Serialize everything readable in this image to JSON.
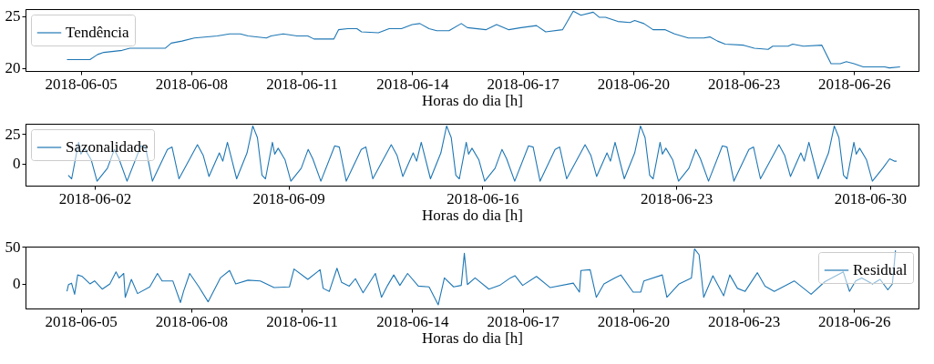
{
  "chart_data": [
    {
      "type": "line",
      "xlabel": "Horas do dia [h]",
      "xlim": [
        "2018-06-03T12:00",
        "2018-06-27T18:00"
      ],
      "xticks": [
        "2018-06-05",
        "2018-06-08",
        "2018-06-11",
        "2018-06-14",
        "2018-06-17",
        "2018-06-20",
        "2018-06-23",
        "2018-06-26"
      ],
      "ylim": [
        19.7,
        25.7
      ],
      "yticks": [
        20,
        25
      ],
      "grid": false,
      "legend": "top left",
      "marker": "none",
      "line_style": "solid",
      "series": [
        {
          "name": "Tendência",
          "color": "#1f77b4",
          "x": [
            "2018-06-04T15:00",
            "2018-06-05T06:00",
            "2018-06-05T11:00",
            "2018-06-05T15:00",
            "2018-06-06T03:00",
            "2018-06-06T08:00",
            "2018-06-06T19:00",
            "2018-06-07T07:00",
            "2018-06-07T11:00",
            "2018-06-07T18:00",
            "2018-06-08T02:00",
            "2018-06-08T17:00",
            "2018-06-09T01:00",
            "2018-06-09T08:00",
            "2018-06-09T13:00",
            "2018-06-10T01:00",
            "2018-06-10T04:00",
            "2018-06-10T12:00",
            "2018-06-10T21:00",
            "2018-06-11T04:00",
            "2018-06-11T08:00",
            "2018-06-11T21:00",
            "2018-06-12T00:00",
            "2018-06-12T06:00",
            "2018-06-12T12:00",
            "2018-06-12T15:00",
            "2018-06-13T02:00",
            "2018-06-13T09:00",
            "2018-06-13T17:00",
            "2018-06-14T00:00",
            "2018-06-14T05:00",
            "2018-06-14T11:00",
            "2018-06-14T16:00",
            "2018-06-15T00:00",
            "2018-06-15T08:00",
            "2018-06-15T12:00",
            "2018-06-16T00:00",
            "2018-06-16T07:00",
            "2018-06-16T15:00",
            "2018-06-16T23:00",
            "2018-06-17T09:00",
            "2018-06-17T15:00",
            "2018-06-18T02:00",
            "2018-06-18T09:00",
            "2018-06-18T14:00",
            "2018-06-18T22:00",
            "2018-06-19T02:00",
            "2018-06-19T06:00",
            "2018-06-19T14:00",
            "2018-06-19T22:00",
            "2018-06-20T01:00",
            "2018-06-20T07:00",
            "2018-06-20T13:00",
            "2018-06-20T21:00",
            "2018-06-21T03:00",
            "2018-06-21T12:00",
            "2018-06-21T22:00",
            "2018-06-22T02:00",
            "2018-06-22T07:00",
            "2018-06-22T12:00",
            "2018-06-23T00:00",
            "2018-06-23T07:00",
            "2018-06-23T16:00",
            "2018-06-23T19:00",
            "2018-06-24T05:00",
            "2018-06-24T08:00",
            "2018-06-24T15:00",
            "2018-06-25T03:00",
            "2018-06-25T09:00",
            "2018-06-25T15:00",
            "2018-06-25T19:00",
            "2018-06-26T00:00",
            "2018-06-26T06:00",
            "2018-06-26T20:00",
            "2018-06-26T23:00",
            "2018-06-27T06:00"
          ],
          "values": [
            20.8,
            20.8,
            21.3,
            21.5,
            21.7,
            21.9,
            21.9,
            21.9,
            22.4,
            22.6,
            22.9,
            23.1,
            23.3,
            23.3,
            23.1,
            22.9,
            23.1,
            23.3,
            23.1,
            23.1,
            22.8,
            22.8,
            23.7,
            23.8,
            23.8,
            23.5,
            23.4,
            23.8,
            23.8,
            24.2,
            24.3,
            23.8,
            23.6,
            23.6,
            24.3,
            23.9,
            23.7,
            24.2,
            23.7,
            23.9,
            24.1,
            23.5,
            23.7,
            25.5,
            25.1,
            25.4,
            24.9,
            24.9,
            24.5,
            24.4,
            24.6,
            24.3,
            23.7,
            23.7,
            23.3,
            22.9,
            22.9,
            23.0,
            22.6,
            22.3,
            22.2,
            21.9,
            21.8,
            22.1,
            22.1,
            22.3,
            22.1,
            22.2,
            20.4,
            20.4,
            20.6,
            20.4,
            20.1,
            20.1,
            20.0,
            20.1
          ]
        }
      ]
    },
    {
      "type": "line",
      "xlabel": "Horas do dia [h]",
      "xlim": [
        "2018-05-30T12:00",
        "2018-07-01T18:00"
      ],
      "xticks": [
        "2018-06-02",
        "2018-06-09",
        "2018-06-16",
        "2018-06-23",
        "2018-06-30"
      ],
      "ylim": [
        -18.8,
        33.8
      ],
      "yticks": [
        0,
        25
      ],
      "grid": false,
      "legend": "top left",
      "marker": "none",
      "line_style": "solid",
      "series": [
        {
          "name": "Sazonalidade",
          "color": "#1f77b4",
          "x": [
            "2018-06-01T01:00",
            "2018-06-01T04:00",
            "2018-06-01T10:00",
            "2018-06-01T12:00",
            "2018-06-01T15:00",
            "2018-06-01T21:00",
            "2018-06-02T02:00",
            "2018-06-02T11:00",
            "2018-06-02T17:00",
            "2018-06-02T21:00",
            "2018-06-03T04:00",
            "2018-06-03T16:00",
            "2018-06-03T20:00",
            "2018-06-04T02:00",
            "2018-06-04T15:00",
            "2018-06-04T19:00",
            "2018-06-05T01:00",
            "2018-06-05T17:00",
            "2018-06-05T22:00",
            "2018-06-06T03:00",
            "2018-06-06T12:00",
            "2018-06-06T15:00",
            "2018-06-06T19:00",
            "2018-06-07T03:00",
            "2018-06-07T12:00",
            "2018-06-07T17:00",
            "2018-06-07T21:00",
            "2018-06-08T01:00",
            "2018-06-08T04:00",
            "2018-06-08T10:00",
            "2018-06-08T12:00",
            "2018-06-08T15:00",
            "2018-06-08T21:00",
            "2018-06-09T02:00",
            "2018-06-09T11:00",
            "2018-06-09T17:00",
            "2018-06-09T21:00",
            "2018-06-10T04:00",
            "2018-06-10T16:00",
            "2018-06-10T20:00",
            "2018-06-11T02:00",
            "2018-06-11T15:00",
            "2018-06-11T19:00",
            "2018-06-12T01:00",
            "2018-06-12T17:00",
            "2018-06-12T22:00",
            "2018-06-13T03:00",
            "2018-06-13T12:00",
            "2018-06-13T15:00",
            "2018-06-13T19:00",
            "2018-06-14T03:00",
            "2018-06-14T12:00",
            "2018-06-14T17:00",
            "2018-06-14T21:00",
            "2018-06-15T01:00",
            "2018-06-15T04:00",
            "2018-06-15T10:00",
            "2018-06-15T12:00",
            "2018-06-15T15:00",
            "2018-06-15T21:00",
            "2018-06-16T02:00",
            "2018-06-16T11:00",
            "2018-06-16T17:00",
            "2018-06-16T21:00",
            "2018-06-17T04:00",
            "2018-06-17T16:00",
            "2018-06-17T20:00",
            "2018-06-18T02:00",
            "2018-06-18T15:00",
            "2018-06-18T19:00",
            "2018-06-19T01:00",
            "2018-06-19T17:00",
            "2018-06-19T22:00",
            "2018-06-20T03:00",
            "2018-06-20T12:00",
            "2018-06-20T15:00",
            "2018-06-20T19:00",
            "2018-06-21T03:00",
            "2018-06-21T12:00",
            "2018-06-21T17:00",
            "2018-06-21T21:00",
            "2018-06-22T01:00",
            "2018-06-22T04:00",
            "2018-06-22T10:00",
            "2018-06-22T12:00",
            "2018-06-22T15:00",
            "2018-06-22T21:00",
            "2018-06-23T02:00",
            "2018-06-23T11:00",
            "2018-06-23T17:00",
            "2018-06-23T21:00",
            "2018-06-24T04:00",
            "2018-06-24T16:00",
            "2018-06-24T20:00",
            "2018-06-25T02:00",
            "2018-06-25T15:00",
            "2018-06-25T19:00",
            "2018-06-26T01:00",
            "2018-06-26T17:00",
            "2018-06-26T22:00",
            "2018-06-27T03:00",
            "2018-06-27T12:00",
            "2018-06-27T15:00",
            "2018-06-27T19:00",
            "2018-06-28T03:00",
            "2018-06-28T12:00",
            "2018-06-28T17:00",
            "2018-06-28T21:00",
            "2018-06-29T01:00",
            "2018-06-29T04:00",
            "2018-06-29T10:00",
            "2018-06-29T12:00",
            "2018-06-29T15:00",
            "2018-06-29T21:00",
            "2018-06-30T02:00",
            "2018-06-30T11:00",
            "2018-06-30T17:00",
            "2018-06-30T21:00",
            "2018-06-30T23:00"
          ],
          "values": [
            -10,
            -13,
            18,
            8,
            13,
            3,
            -15,
            -4,
            12,
            4,
            -15,
            15,
            14,
            -15,
            12,
            14,
            -13,
            16,
            7,
            -11,
            9,
            2,
            18,
            -13,
            9,
            32,
            22,
            -10,
            -13,
            18,
            8,
            13,
            3,
            -15,
            -4,
            12,
            4,
            -15,
            15,
            14,
            -15,
            12,
            14,
            -13,
            16,
            7,
            -11,
            9,
            2,
            18,
            -13,
            9,
            32,
            22,
            -10,
            -13,
            18,
            8,
            13,
            3,
            -15,
            -4,
            12,
            4,
            -15,
            15,
            14,
            -15,
            12,
            14,
            -13,
            16,
            7,
            -11,
            9,
            2,
            18,
            -13,
            9,
            32,
            22,
            -10,
            -13,
            18,
            8,
            13,
            3,
            -15,
            -4,
            12,
            4,
            -15,
            15,
            14,
            -15,
            12,
            14,
            -13,
            16,
            7,
            -11,
            9,
            2,
            18,
            -13,
            9,
            32,
            22,
            -10,
            -13,
            18,
            8,
            13,
            3,
            -15,
            -4,
            4,
            2,
            2
          ]
        }
      ]
    },
    {
      "type": "line",
      "xlabel": "Horas do dia [h]",
      "xlim": [
        "2018-06-03T12:00",
        "2018-06-27T18:00"
      ],
      "xticks": [
        "2018-06-05",
        "2018-06-08",
        "2018-06-11",
        "2018-06-14",
        "2018-06-17",
        "2018-06-20",
        "2018-06-23",
        "2018-06-26"
      ],
      "ylim": [
        -33,
        50
      ],
      "yticks": [
        0,
        50
      ],
      "grid": false,
      "legend": "top right",
      "marker": "none",
      "line_style": "solid",
      "series": [
        {
          "name": "Residual",
          "color": "#1f77b4",
          "x": [
            "2018-06-04T15:00",
            "2018-06-04T16:00",
            "2018-06-04T18:00",
            "2018-06-04T20:00",
            "2018-06-04T22:00",
            "2018-06-05T01:00",
            "2018-06-05T06:00",
            "2018-06-05T09:00",
            "2018-06-05T14:00",
            "2018-06-05T19:00",
            "2018-06-05T23:00",
            "2018-06-06T01:00",
            "2018-06-06T04:00",
            "2018-06-06T05:00",
            "2018-06-06T09:00",
            "2018-06-06T13:00",
            "2018-06-06T21:00",
            "2018-06-07T02:00",
            "2018-06-07T05:00",
            "2018-06-07T12:00",
            "2018-06-07T17:00",
            "2018-06-07T19:00",
            "2018-06-07T23:00",
            "2018-06-08T05:00",
            "2018-06-08T11:00",
            "2018-06-08T19:00",
            "2018-06-09T01:00",
            "2018-06-09T05:00",
            "2018-06-09T13:00",
            "2018-06-09T21:00",
            "2018-06-10T06:00",
            "2018-06-10T16:00",
            "2018-06-10T19:00",
            "2018-06-11T04:00",
            "2018-06-11T12:00",
            "2018-06-11T14:00",
            "2018-06-11T18:00",
            "2018-06-11T23:00",
            "2018-06-12T02:00",
            "2018-06-12T07:00",
            "2018-06-12T11:00",
            "2018-06-12T16:00",
            "2018-06-13T00:00",
            "2018-06-13T04:00",
            "2018-06-13T08:00",
            "2018-06-13T12:00",
            "2018-06-13T16:00",
            "2018-06-13T21:00",
            "2018-06-14T04:00",
            "2018-06-14T11:00",
            "2018-06-14T17:00",
            "2018-06-14T21:00",
            "2018-06-15T03:00",
            "2018-06-15T08:00",
            "2018-06-15T10:00",
            "2018-06-15T12:00",
            "2018-06-15T17:00",
            "2018-06-16T02:00",
            "2018-06-16T09:00",
            "2018-06-16T16:00",
            "2018-06-16T19:00",
            "2018-06-17T00:00",
            "2018-06-17T09:00",
            "2018-06-17T18:00",
            "2018-06-18T09:00",
            "2018-06-18T13:00",
            "2018-06-18T14:00",
            "2018-06-18T20:00",
            "2018-06-19T00:00",
            "2018-06-19T05:00",
            "2018-06-19T12:00",
            "2018-06-19T16:00",
            "2018-06-20T00:00",
            "2018-06-20T05:00",
            "2018-06-20T07:00",
            "2018-06-20T19:00",
            "2018-06-20T22:00",
            "2018-06-21T06:00",
            "2018-06-21T14:00",
            "2018-06-21T16:00",
            "2018-06-21T19:00",
            "2018-06-21T22:00",
            "2018-06-22T04:00",
            "2018-06-22T11:00",
            "2018-06-22T15:00",
            "2018-06-22T20:00",
            "2018-06-23T01:00",
            "2018-06-23T09:00",
            "2018-06-23T14:00",
            "2018-06-23T20:00",
            "2018-06-24T09:00",
            "2018-06-24T20:00",
            "2018-06-25T05:00",
            "2018-06-25T17:00",
            "2018-06-25T21:00",
            "2018-06-26T01:00",
            "2018-06-26T05:00",
            "2018-06-26T12:00",
            "2018-06-26T17:00",
            "2018-06-26T22:00",
            "2018-06-27T01:00",
            "2018-06-27T03:00"
          ],
          "values": [
            -10,
            -1,
            1,
            -14,
            12,
            10,
            0,
            4,
            -7,
            0,
            16,
            8,
            14,
            -18,
            6,
            -13,
            -4,
            14,
            4,
            4,
            -25,
            -10,
            14,
            -4,
            -24,
            8,
            18,
            0,
            5,
            4,
            -5,
            -4,
            20,
            6,
            19,
            -6,
            -10,
            21,
            2,
            -3,
            7,
            -12,
            14,
            -18,
            -2,
            12,
            -2,
            14,
            -3,
            -4,
            -28,
            8,
            -4,
            -2,
            41,
            -1,
            8,
            -7,
            -2,
            8,
            11,
            -2,
            10,
            -5,
            1,
            -11,
            18,
            19,
            -18,
            0,
            8,
            12,
            -11,
            -11,
            4,
            12,
            -18,
            0,
            8,
            47,
            39,
            -18,
            11,
            -16,
            12,
            -6,
            -10,
            15,
            -3,
            -10,
            4,
            -14,
            3,
            16,
            -10,
            4,
            8,
            0,
            6,
            -8,
            0,
            45
          ]
        }
      ]
    }
  ]
}
